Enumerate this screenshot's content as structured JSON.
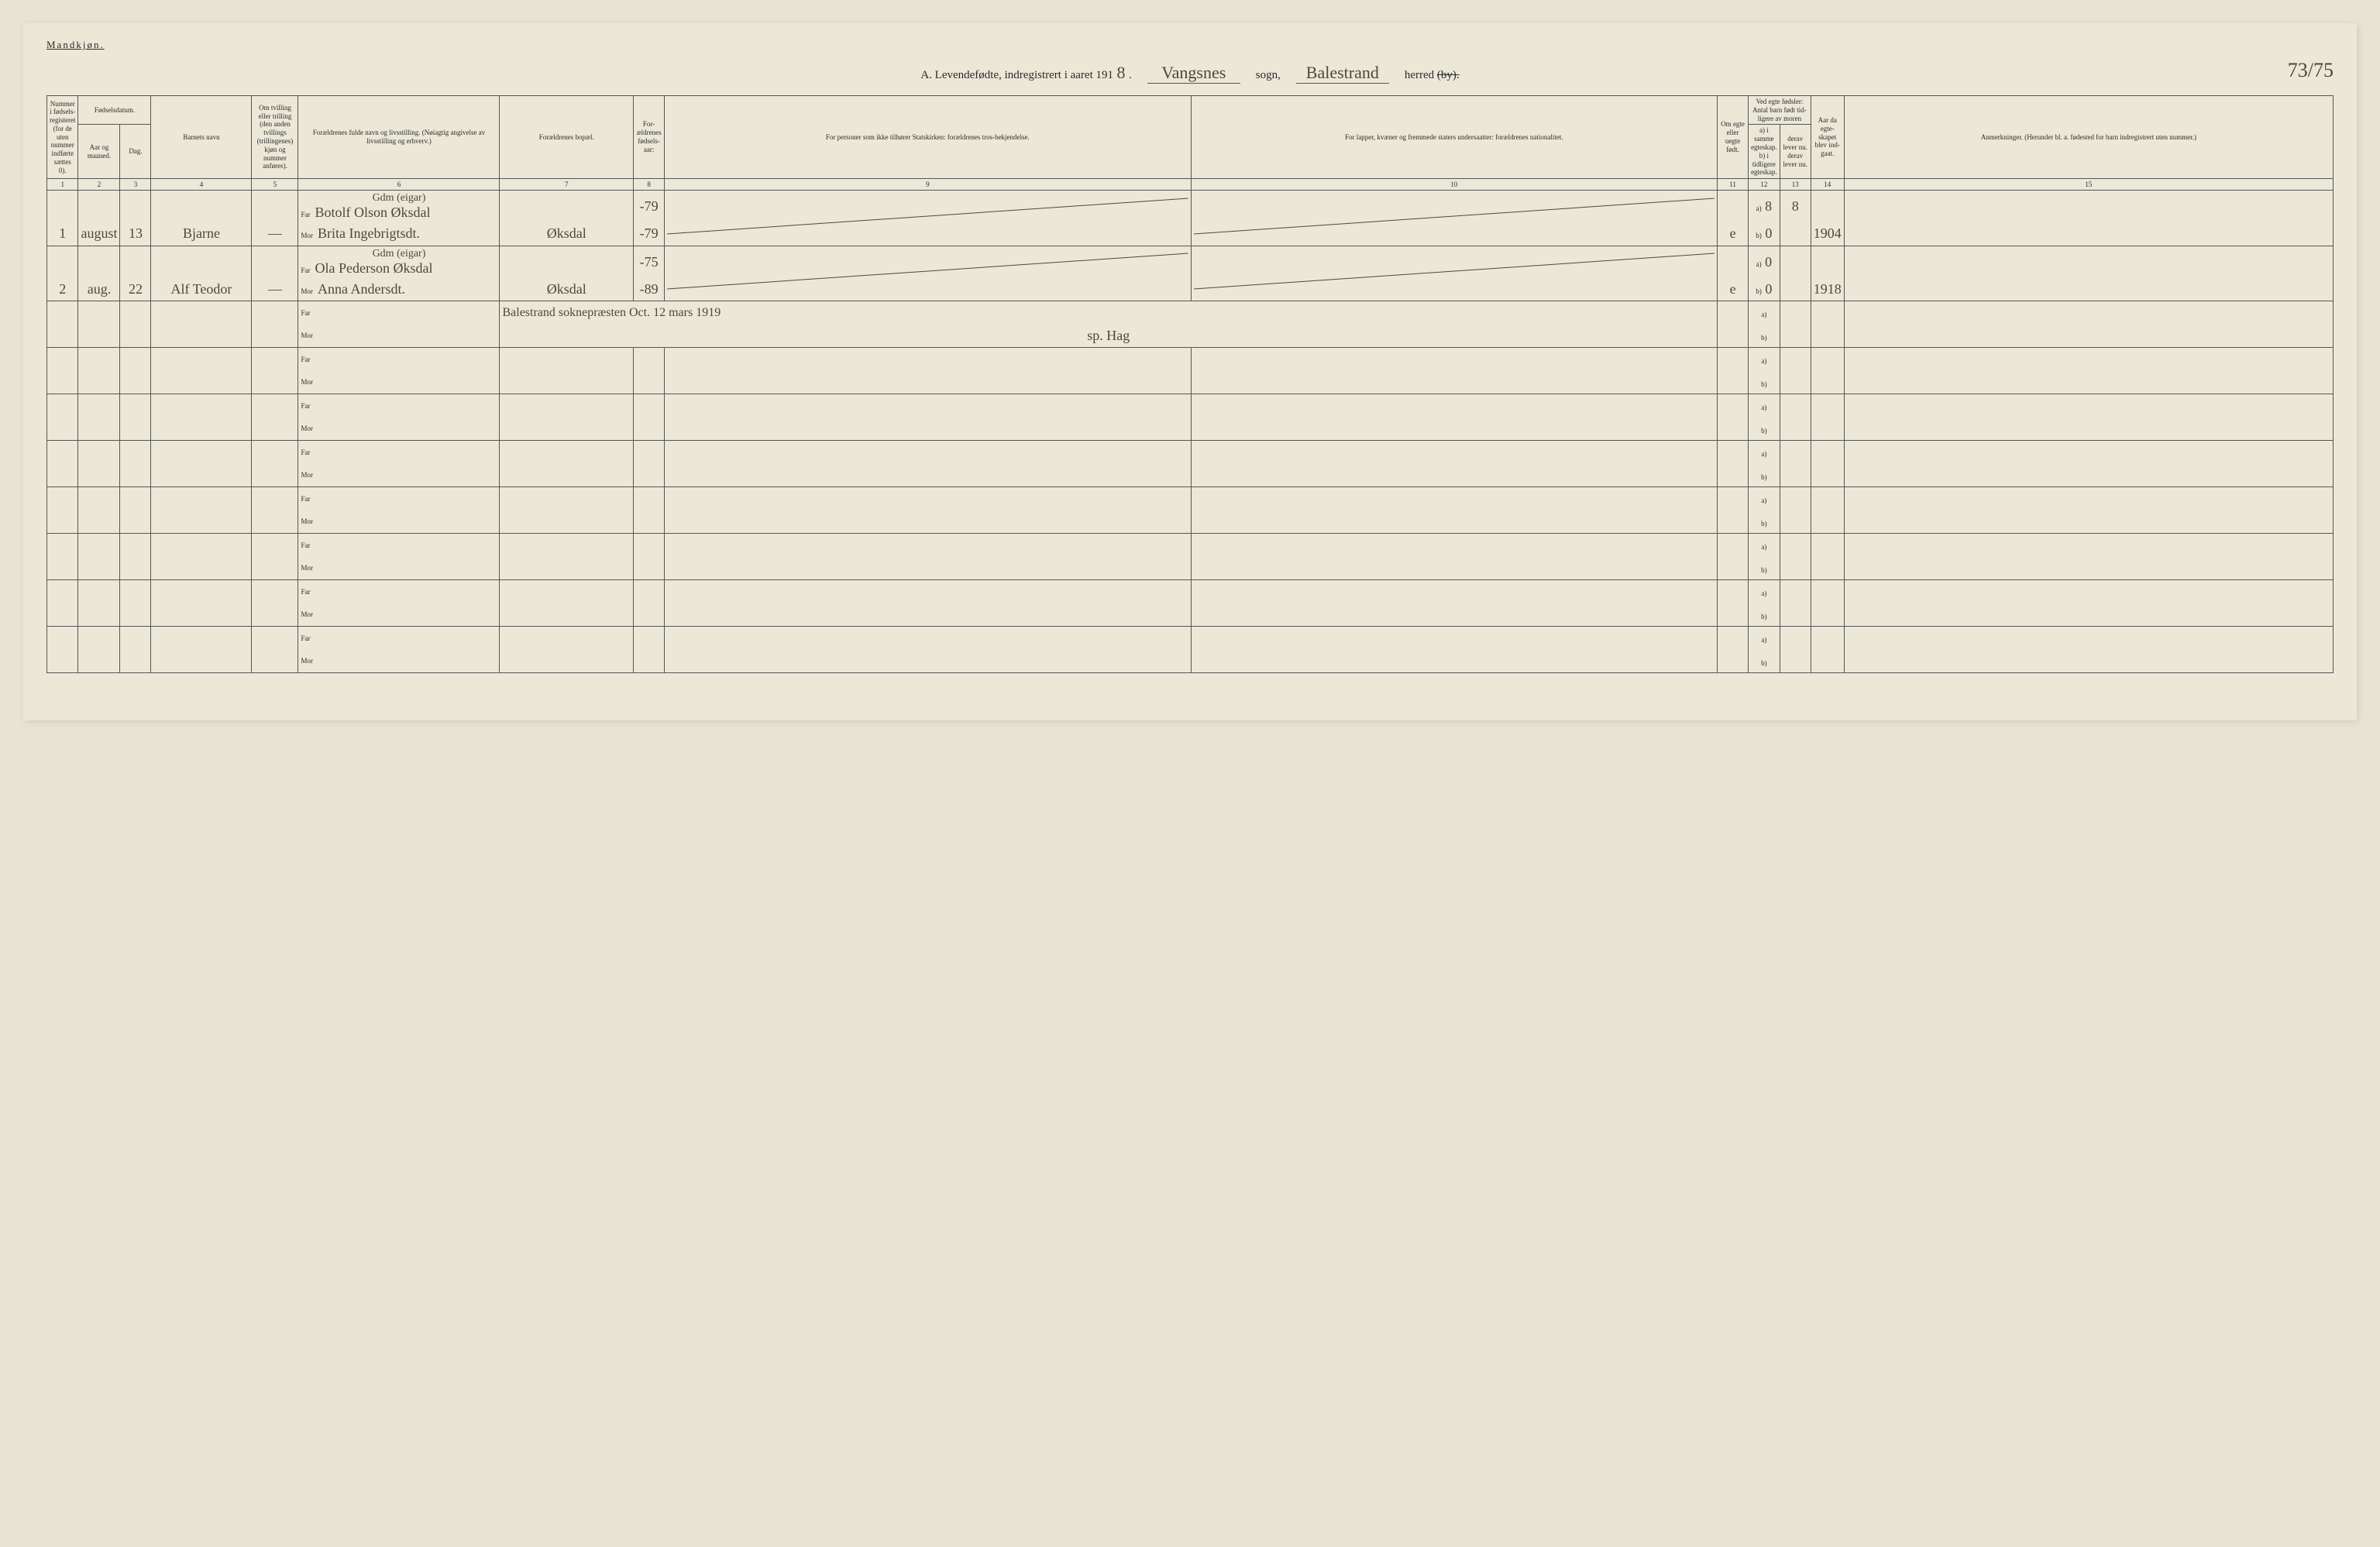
{
  "gender_label": "Mandkjøn.",
  "title": {
    "prefix": "A. Levendefødte, indregistrert i aaret 191",
    "year_suffix": "8",
    "sogn_value": "Vangsnes",
    "sogn_label": "sogn,",
    "herred_value": "Balestrand",
    "herred_label": "herred",
    "by_strike": "(by).",
    "page_num": "73/75"
  },
  "headers": {
    "c1": "Nummer i fødsels-registeret (for de uten nummer indførte sættes 0).",
    "c2_3": "Fødselsdatum.",
    "c2": "Aar og maaned.",
    "c3": "Dag.",
    "c4": "Barnets navn",
    "c5": "Om tvilling eller trilling (den anden tvillings (trillingenes) kjøn og nummer anføres).",
    "c6": "Forældrenes fulde navn og livsstilling. (Nøiagtig angivelse av livsstilling og erhverv.)",
    "c7": "Forældrenes bopæl.",
    "c8": "For-ældrenes fødsels-aar:",
    "c9": "For personer som ikke tilhører Statskirken: forældrenes tros-bekjendelse.",
    "c10": "For lapper, kvæner og fremmede staters undersaatter: forældrenes nationalitet.",
    "c11": "Om egte eller uegte født.",
    "c12_13": "Ved egte fødsler: Antal barn født tid-ligere av moren",
    "c12": "a) i samme egteskap. b) i tidligere egteskap.",
    "c13": "derav lever nu. derav lever nu.",
    "c14": "Aar da egte-skapet blev ind-gaat.",
    "c15": "Anmerkninger. (Herunder bl. a. fødested for barn indregistrert uten nummer.)"
  },
  "colnums": [
    "1",
    "2",
    "3",
    "4",
    "5",
    "6",
    "7",
    "8",
    "9",
    "10",
    "11",
    "12",
    "13",
    "14",
    "15"
  ],
  "far_label": "Far",
  "mor_label": "Mor",
  "ab_a": "a)",
  "ab_b": "b)",
  "rows": [
    {
      "num": "1",
      "month": "august",
      "day": "13",
      "name": "Bjarne",
      "twin": "—",
      "occ": "Gdm (eigar)",
      "far": "Botolf Olson Øksdal",
      "mor": "Brita Ingebrigtsdt.",
      "bopael": "Øksdal",
      "far_year": "-79",
      "mor_year": "-79",
      "egte": "e",
      "a_val": "8",
      "a_lev": "8",
      "b_val": "0",
      "b_lev": "",
      "year_married": "1904"
    },
    {
      "num": "2",
      "month": "aug.",
      "day": "22",
      "name": "Alf Teodor",
      "twin": "—",
      "occ": "Gdm (eigar)",
      "far": "Ola Pederson Øksdal",
      "mor": "Anna Andersdt.",
      "bopael": "Øksdal",
      "far_year": "-75",
      "mor_year": "-89",
      "egte": "e",
      "a_val": "0",
      "a_lev": "",
      "b_val": "0",
      "b_lev": "",
      "year_married": "1918"
    }
  ],
  "note_row": {
    "text": "Balestrand soknepræsten Oct. 12 mars 1919",
    "sig": "sp. Hag"
  },
  "empty_rows": 7
}
